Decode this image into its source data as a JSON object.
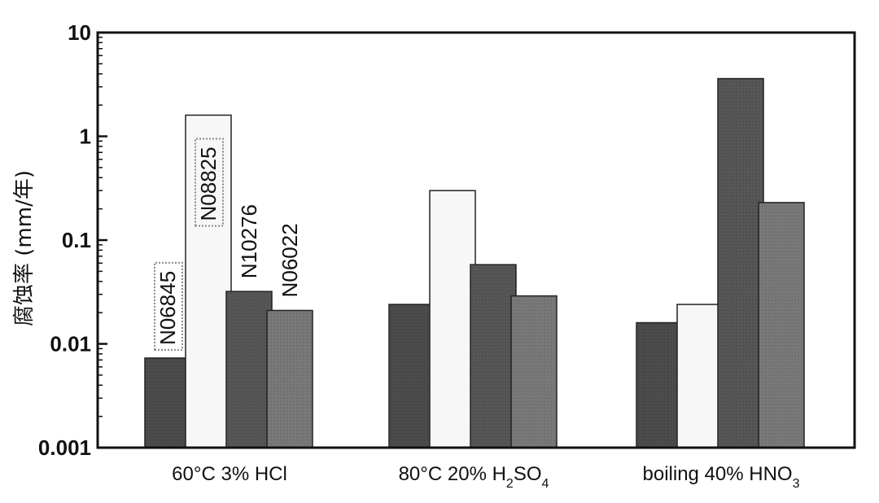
{
  "chart_data": {
    "type": "bar",
    "title": "",
    "xlabel": "",
    "ylabel": "腐蚀率 (mm/年)",
    "yscale": "log",
    "ylim": [
      0.001,
      10
    ],
    "yticks": [
      {
        "value": 0.001,
        "label": "0.001"
      },
      {
        "value": 0.01,
        "label": "0.01"
      },
      {
        "value": 0.1,
        "label": "0.1"
      },
      {
        "value": 1,
        "label": "1"
      },
      {
        "value": 10,
        "label": "10"
      }
    ],
    "grid": false,
    "groups": [
      {
        "label": {
          "pre": "60°C  3% HCl"
        },
        "bars": [
          {
            "series": "N06845",
            "value": 0.0073,
            "color": "#4a4a4a",
            "label": "N06845",
            "boxed": true
          },
          {
            "series": "N08825",
            "value": 1.6,
            "color": "#f7f7f7",
            "label": "N08825",
            "boxed": true
          },
          {
            "series": "N10276",
            "value": 0.032,
            "color": "#555555",
            "label": "N10276",
            "boxed": false
          },
          {
            "series": "N06022",
            "value": 0.021,
            "color": "#777777",
            "label": "N06022",
            "boxed": false
          }
        ]
      },
      {
        "label": {
          "pre": "80°C  20% H",
          "sub1": "2",
          "mid": "SO",
          "sub2": "4"
        },
        "bars": [
          {
            "series": "N06845",
            "value": 0.024,
            "color": "#4a4a4a"
          },
          {
            "series": "N08825",
            "value": 0.3,
            "color": "#f7f7f7"
          },
          {
            "series": "N10276",
            "value": 0.058,
            "color": "#555555"
          },
          {
            "series": "N06022",
            "value": 0.029,
            "color": "#777777"
          }
        ]
      },
      {
        "label": {
          "pre": "boiling 40%  HNO",
          "sub1": "3"
        },
        "bars": [
          {
            "series": "N06845",
            "value": 0.016,
            "color": "#4a4a4a"
          },
          {
            "series": "N08825",
            "value": 0.024,
            "color": "#f7f7f7"
          },
          {
            "series": "N10276",
            "value": 3.6,
            "color": "#555555"
          },
          {
            "series": "N06022",
            "value": 0.23,
            "color": "#777777"
          }
        ]
      }
    ]
  }
}
